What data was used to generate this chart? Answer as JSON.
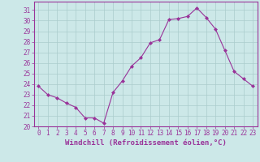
{
  "x": [
    0,
    1,
    2,
    3,
    4,
    5,
    6,
    7,
    8,
    9,
    10,
    11,
    12,
    13,
    14,
    15,
    16,
    17,
    18,
    19,
    20,
    21,
    22,
    23
  ],
  "y": [
    23.8,
    23.0,
    22.7,
    22.2,
    21.8,
    20.8,
    20.8,
    20.3,
    23.2,
    24.3,
    25.7,
    26.5,
    27.9,
    28.2,
    30.1,
    30.2,
    30.4,
    31.2,
    30.3,
    29.2,
    27.2,
    25.2,
    24.5,
    23.8
  ],
  "line_color": "#993399",
  "marker": "D",
  "marker_size": 2,
  "bg_color": "#cce8e8",
  "grid_color": "#aacccc",
  "xlabel": "Windchill (Refroidissement éolien,°C)",
  "ylim": [
    20,
    31.8
  ],
  "yticks": [
    20,
    21,
    22,
    23,
    24,
    25,
    26,
    27,
    28,
    29,
    30,
    31
  ],
  "xlim": [
    -0.5,
    23.5
  ],
  "xticks": [
    0,
    1,
    2,
    3,
    4,
    5,
    6,
    7,
    8,
    9,
    10,
    11,
    12,
    13,
    14,
    15,
    16,
    17,
    18,
    19,
    20,
    21,
    22,
    23
  ],
  "tick_label_size": 5.5,
  "xlabel_size": 6.5,
  "line_color_hex": "#993399",
  "spine_color": "#993399"
}
